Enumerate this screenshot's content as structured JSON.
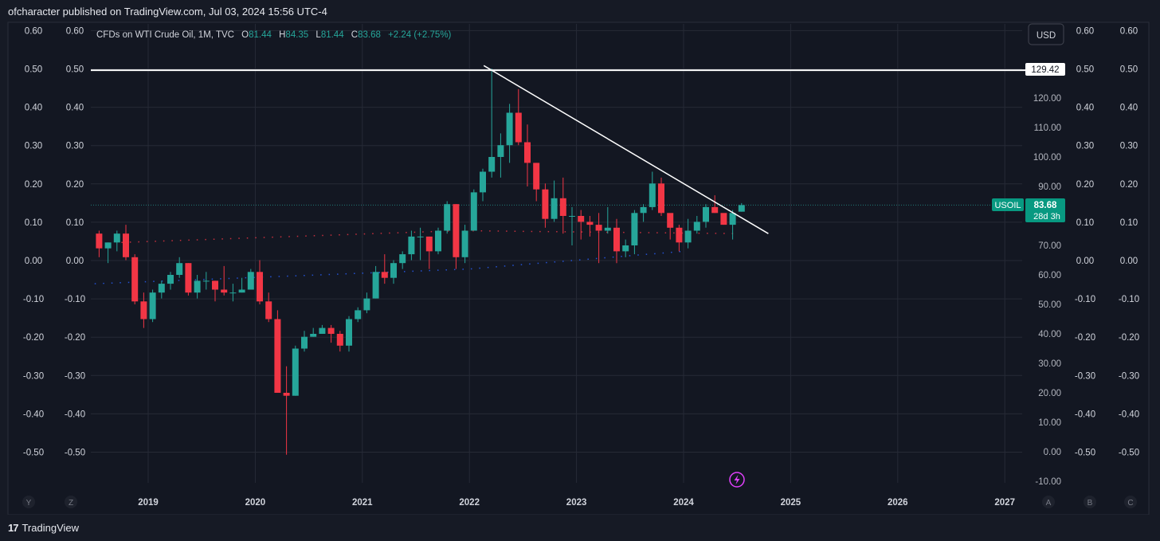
{
  "header": {
    "attribution": "ofcharacter published on TradingView.com, Jul 03, 2024 15:56 UTC-4"
  },
  "footer": {
    "brand": "TradingView",
    "logo_mark": "17"
  },
  "legend": {
    "symbol_desc": "CFDs on WTI Crude Oil, 1M, TVC",
    "o_label": "O",
    "o_value": "81.44",
    "h_label": "H",
    "h_value": "84.35",
    "l_label": "L",
    "l_value": "81.44",
    "c_label": "C",
    "c_value": "83.68",
    "change": "+2.24 (+2.75%)"
  },
  "currency_button": "USD",
  "price_label": {
    "symbol": "USOIL",
    "price": "83.68",
    "countdown": "28d 3h"
  },
  "hline_label": "129.42",
  "bottom_buttons": {
    "left": [
      "Y",
      "Z"
    ],
    "right": [
      "A",
      "B",
      "C"
    ]
  },
  "colors": {
    "up": "#26a69a",
    "down": "#f23645",
    "background": "#161a25",
    "grid": "#262a36",
    "text": "#d1d4dc",
    "axis_text": "#b2b5be"
  },
  "chart_data": {
    "type": "candlestick",
    "symbol": "USOIL",
    "interval": "1M",
    "price_axis": {
      "ticks": [
        "-10.00",
        "0.00",
        "10.00",
        "20.00",
        "30.00",
        "40.00",
        "50.00",
        "60.00",
        "70.00",
        "80.00",
        "90.00",
        "100.00",
        "110.00",
        "120.00"
      ],
      "range": [
        -13,
        140
      ]
    },
    "percent_axis": {
      "ticks": [
        "0.60",
        "0.50",
        "0.40",
        "0.30",
        "0.20",
        "0.10",
        "0.00",
        "-0.10",
        "-0.20",
        "-0.30",
        "-0.40",
        "-0.50"
      ],
      "range": [
        -0.56,
        0.64
      ]
    },
    "time_axis": {
      "labels": [
        "2019",
        "2020",
        "2021",
        "2022",
        "2023",
        "2024",
        "2025",
        "2026",
        "2027"
      ],
      "range": [
        "2018-07",
        "2027-07"
      ]
    },
    "horizontal_line": {
      "price": 129.42,
      "label": "129.42"
    },
    "trendline": {
      "from": {
        "date": "2022-03",
        "price": 131
      },
      "to": {
        "date": "2024-10",
        "price": 74
      }
    },
    "current_price": 83.68,
    "dotted_levels": [
      {
        "color": "#f23645",
        "points": [
          [
            2018.75,
            71
          ],
          [
            2021.9,
            75
          ],
          [
            2024.5,
            74
          ]
        ]
      },
      {
        "color": "#2962ff",
        "points": [
          [
            2018.5,
            57
          ],
          [
            2022.0,
            62
          ],
          [
            2024.0,
            68
          ]
        ]
      }
    ],
    "candles": [
      {
        "t": "2018-07",
        "o": 74,
        "h": 75,
        "l": 66,
        "c": 69
      },
      {
        "t": "2018-08",
        "o": 69,
        "h": 71,
        "l": 64,
        "c": 71
      },
      {
        "t": "2018-09",
        "o": 71,
        "h": 75,
        "l": 68,
        "c": 74
      },
      {
        "t": "2018-10",
        "o": 74,
        "h": 77,
        "l": 65,
        "c": 66
      },
      {
        "t": "2018-11",
        "o": 66,
        "h": 67,
        "l": 50,
        "c": 51
      },
      {
        "t": "2018-12",
        "o": 51,
        "h": 54,
        "l": 42,
        "c": 45
      },
      {
        "t": "2019-01",
        "o": 45,
        "h": 55,
        "l": 44,
        "c": 54
      },
      {
        "t": "2019-02",
        "o": 54,
        "h": 58,
        "l": 52,
        "c": 57
      },
      {
        "t": "2019-03",
        "o": 57,
        "h": 61,
        "l": 55,
        "c": 60
      },
      {
        "t": "2019-04",
        "o": 60,
        "h": 66,
        "l": 59,
        "c": 64
      },
      {
        "t": "2019-05",
        "o": 64,
        "h": 64,
        "l": 53,
        "c": 54
      },
      {
        "t": "2019-06",
        "o": 54,
        "h": 60,
        "l": 52,
        "c": 58
      },
      {
        "t": "2019-07",
        "o": 58,
        "h": 61,
        "l": 55,
        "c": 58
      },
      {
        "t": "2019-08",
        "o": 58,
        "h": 58,
        "l": 51,
        "c": 55
      },
      {
        "t": "2019-09",
        "o": 55,
        "h": 63,
        "l": 53,
        "c": 54
      },
      {
        "t": "2019-10",
        "o": 54,
        "h": 57,
        "l": 51,
        "c": 54
      },
      {
        "t": "2019-11",
        "o": 54,
        "h": 59,
        "l": 54,
        "c": 55
      },
      {
        "t": "2019-12",
        "o": 55,
        "h": 62,
        "l": 55,
        "c": 61
      },
      {
        "t": "2020-01",
        "o": 61,
        "h": 65,
        "l": 50,
        "c": 51
      },
      {
        "t": "2020-02",
        "o": 51,
        "h": 54,
        "l": 44,
        "c": 45
      },
      {
        "t": "2020-03",
        "o": 45,
        "h": 48,
        "l": 20,
        "c": 20
      },
      {
        "t": "2020-04",
        "o": 20,
        "h": 29,
        "l": -1,
        "c": 19
      },
      {
        "t": "2020-05",
        "o": 19,
        "h": 36,
        "l": 19,
        "c": 35
      },
      {
        "t": "2020-06",
        "o": 35,
        "h": 41,
        "l": 34,
        "c": 39
      },
      {
        "t": "2020-07",
        "o": 39,
        "h": 42,
        "l": 39,
        "c": 40
      },
      {
        "t": "2020-08",
        "o": 40,
        "h": 43,
        "l": 40,
        "c": 42
      },
      {
        "t": "2020-09",
        "o": 42,
        "h": 43,
        "l": 37,
        "c": 40
      },
      {
        "t": "2020-10",
        "o": 40,
        "h": 41,
        "l": 34,
        "c": 36
      },
      {
        "t": "2020-11",
        "o": 36,
        "h": 46,
        "l": 34,
        "c": 45
      },
      {
        "t": "2020-12",
        "o": 45,
        "h": 49,
        "l": 44,
        "c": 48
      },
      {
        "t": "2021-01",
        "o": 48,
        "h": 54,
        "l": 47,
        "c": 52
      },
      {
        "t": "2021-02",
        "o": 52,
        "h": 63,
        "l": 52,
        "c": 61
      },
      {
        "t": "2021-03",
        "o": 61,
        "h": 67,
        "l": 57,
        "c": 59
      },
      {
        "t": "2021-04",
        "o": 59,
        "h": 65,
        "l": 57,
        "c": 64
      },
      {
        "t": "2021-05",
        "o": 64,
        "h": 68,
        "l": 62,
        "c": 67
      },
      {
        "t": "2021-06",
        "o": 67,
        "h": 75,
        "l": 65,
        "c": 73
      },
      {
        "t": "2021-07",
        "o": 73,
        "h": 76,
        "l": 65,
        "c": 73
      },
      {
        "t": "2021-08",
        "o": 73,
        "h": 73,
        "l": 62,
        "c": 68
      },
      {
        "t": "2021-09",
        "o": 68,
        "h": 76,
        "l": 67,
        "c": 75
      },
      {
        "t": "2021-10",
        "o": 75,
        "h": 85,
        "l": 74,
        "c": 84
      },
      {
        "t": "2021-11",
        "o": 84,
        "h": 84,
        "l": 62,
        "c": 66
      },
      {
        "t": "2021-12",
        "o": 66,
        "h": 77,
        "l": 64,
        "c": 75
      },
      {
        "t": "2022-01",
        "o": 75,
        "h": 89,
        "l": 75,
        "c": 88
      },
      {
        "t": "2022-02",
        "o": 88,
        "h": 96,
        "l": 85,
        "c": 95
      },
      {
        "t": "2022-03",
        "o": 95,
        "h": 130,
        "l": 93,
        "c": 100
      },
      {
        "t": "2022-04",
        "o": 100,
        "h": 108,
        "l": 93,
        "c": 104
      },
      {
        "t": "2022-05",
        "o": 104,
        "h": 118,
        "l": 98,
        "c": 115
      },
      {
        "t": "2022-06",
        "o": 115,
        "h": 123,
        "l": 104,
        "c": 105
      },
      {
        "t": "2022-07",
        "o": 105,
        "h": 111,
        "l": 90,
        "c": 98
      },
      {
        "t": "2022-08",
        "o": 98,
        "h": 98,
        "l": 85,
        "c": 89
      },
      {
        "t": "2022-09",
        "o": 89,
        "h": 91,
        "l": 76,
        "c": 79
      },
      {
        "t": "2022-10",
        "o": 79,
        "h": 92,
        "l": 78,
        "c": 86
      },
      {
        "t": "2022-11",
        "o": 86,
        "h": 93,
        "l": 74,
        "c": 80
      },
      {
        "t": "2022-12",
        "o": 80,
        "h": 83,
        "l": 70,
        "c": 80
      },
      {
        "t": "2023-01",
        "o": 80,
        "h": 82,
        "l": 72,
        "c": 78
      },
      {
        "t": "2023-02",
        "o": 78,
        "h": 80,
        "l": 73,
        "c": 77
      },
      {
        "t": "2023-03",
        "o": 77,
        "h": 81,
        "l": 64,
        "c": 75
      },
      {
        "t": "2023-04",
        "o": 75,
        "h": 83,
        "l": 74,
        "c": 76
      },
      {
        "t": "2023-05",
        "o": 76,
        "h": 79,
        "l": 64,
        "c": 68
      },
      {
        "t": "2023-06",
        "o": 68,
        "h": 72,
        "l": 66,
        "c": 70
      },
      {
        "t": "2023-07",
        "o": 70,
        "h": 82,
        "l": 67,
        "c": 81
      },
      {
        "t": "2023-08",
        "o": 81,
        "h": 84,
        "l": 78,
        "c": 83
      },
      {
        "t": "2023-09",
        "o": 83,
        "h": 95,
        "l": 82,
        "c": 91
      },
      {
        "t": "2023-10",
        "o": 91,
        "h": 93,
        "l": 80,
        "c": 81
      },
      {
        "t": "2023-11",
        "o": 81,
        "h": 80,
        "l": 72,
        "c": 76
      },
      {
        "t": "2023-12",
        "o": 76,
        "h": 77,
        "l": 68,
        "c": 71
      },
      {
        "t": "2024-01",
        "o": 71,
        "h": 79,
        "l": 69,
        "c": 75
      },
      {
        "t": "2024-02",
        "o": 75,
        "h": 80,
        "l": 74,
        "c": 78
      },
      {
        "t": "2024-03",
        "o": 78,
        "h": 84,
        "l": 76,
        "c": 83
      },
      {
        "t": "2024-04",
        "o": 83,
        "h": 87,
        "l": 81,
        "c": 81
      },
      {
        "t": "2024-05",
        "o": 81,
        "h": 80,
        "l": 77,
        "c": 77
      },
      {
        "t": "2024-06",
        "o": 77,
        "h": 82,
        "l": 72,
        "c": 81
      },
      {
        "t": "2024-07",
        "o": 81.44,
        "h": 84.35,
        "l": 81.44,
        "c": 83.68
      }
    ]
  }
}
